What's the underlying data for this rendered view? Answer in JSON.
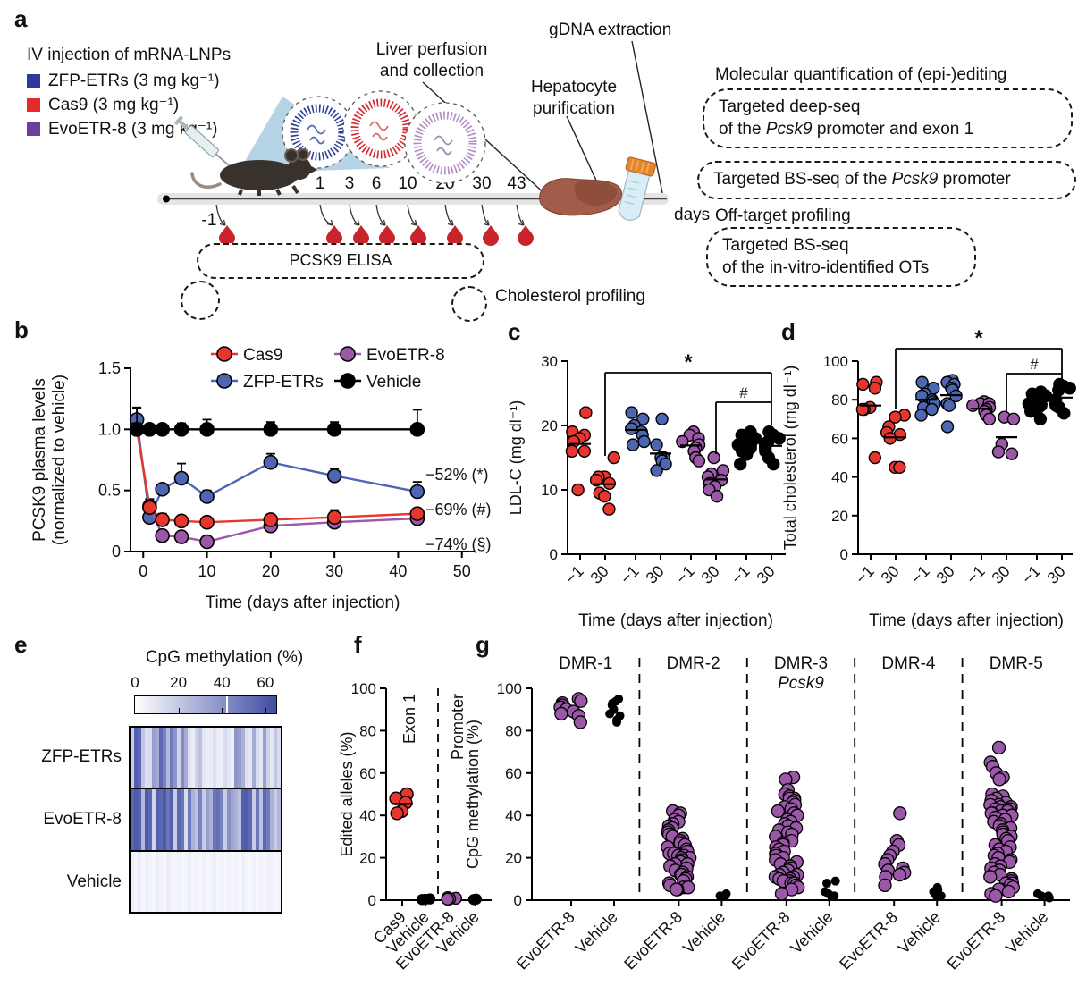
{
  "panels": {
    "a": "a",
    "b": "b",
    "c": "c",
    "d": "d",
    "e": "e",
    "f": "f",
    "g": "g"
  },
  "colors": {
    "cas9": "#e8362f",
    "zfp": "#4c66b2",
    "evo": "#9b57a8",
    "vehicle": "#000000",
    "heat_max": "#3f4da3"
  },
  "panel_a": {
    "legend_title": "IV injection of mRNA-LNPs",
    "legend_items": [
      {
        "label": "ZFP-ETRs (3 mg kg⁻¹)",
        "color": "#30389b"
      },
      {
        "label": "Cas9 (3 mg kg⁻¹)",
        "color": "#e42a2a"
      },
      {
        "label": "EvoETR-8 (3 mg kg⁻¹)",
        "color": "#6b3f9c"
      }
    ],
    "timeline": {
      "start_label": "-1",
      "ticks": [
        "1",
        "3",
        "6",
        "10",
        "20",
        "30",
        "43"
      ],
      "unit_label": "days"
    },
    "callouts": {
      "liver_line1": "Liver perfusion",
      "liver_line2": "and collection",
      "hepatocyte_line1": "Hepatocyte",
      "hepatocyte_line2": "purification",
      "gdna": "gDNA extraction",
      "elisa": "PCSK9 ELISA",
      "cholesterol": "Cholesterol profiling"
    },
    "right_panel": {
      "quant_title": "Molecular quantification of (epi-)editing",
      "box1_line1": "Targeted deep-seq",
      "box1_line2_parts": [
        "of the ",
        "Pcsk9",
        " promoter and exon 1"
      ],
      "box2_parts": [
        "Targeted BS-seq of the ",
        "Pcsk9",
        " promoter"
      ],
      "offtarget_title": "Off-target profiling",
      "box3_line1": "Targeted BS-seq",
      "box3_line2": "of the in-vitro-identified OTs"
    }
  },
  "chart_data": [
    {
      "panel": "b",
      "type": "line",
      "xlabel": "Time (days after injection)",
      "ylabel_line1": "PCSK9 plasma levels",
      "ylabel_line2": "(normalized to vehicle)",
      "x": [
        -1,
        1,
        3,
        6,
        10,
        20,
        30,
        43
      ],
      "xlim": [
        -2,
        52
      ],
      "xticks": [
        0,
        10,
        20,
        30,
        40,
        50
      ],
      "ylim": [
        0,
        1.5
      ],
      "yticks": [
        0,
        0.5,
        1.0,
        1.5
      ],
      "ytick_labels": [
        "0",
        "0.5",
        "1.0",
        "1.5"
      ],
      "series": [
        {
          "name": "ZFP-ETRs",
          "color": "#4c66b2",
          "values": [
            1.08,
            0.28,
            0.51,
            0.6,
            0.45,
            0.73,
            0.62,
            0.49
          ],
          "err": [
            0.1,
            0.04,
            0.04,
            0.12,
            0.05,
            0.07,
            0.06,
            0.08
          ]
        },
        {
          "name": "EvoETR-8",
          "color": "#9b57a8",
          "values": [
            1.0,
            0.37,
            0.13,
            0.12,
            0.08,
            0.21,
            0.24,
            0.27
          ],
          "err": [
            0.05,
            0.06,
            0.03,
            0.03,
            0.02,
            0.04,
            0.04,
            0.04
          ]
        },
        {
          "name": "Cas9",
          "color": "#e8362f",
          "values": [
            1.0,
            0.36,
            0.26,
            0.25,
            0.24,
            0.26,
            0.28,
            0.31
          ],
          "err": [
            0.05,
            0.06,
            0.05,
            0.04,
            0.04,
            0.04,
            0.06,
            0.04
          ]
        },
        {
          "name": "Vehicle",
          "color": "#000000",
          "values": [
            1.0,
            1.0,
            1.0,
            1.0,
            1.0,
            1.0,
            1.0,
            1.0
          ],
          "err": [
            0.17,
            0.04,
            0.04,
            0.05,
            0.08,
            0.06,
            0.06,
            0.16
          ]
        }
      ],
      "legend_order": [
        "Cas9",
        "ZFP-ETRs",
        "EvoETR-8",
        "Vehicle"
      ],
      "annotations": [
        {
          "text": "−52% (*)",
          "color": "#4c66b2",
          "v": 0.63
        },
        {
          "text": "−69% (#)",
          "color": "#e8362f",
          "v": 0.345
        },
        {
          "text": "−74% (§)",
          "color": "#9b57a8",
          "v": 0.06
        }
      ]
    },
    {
      "panel": "c",
      "type": "scatter",
      "ylabel": "LDL-C (mg dl⁻¹)",
      "xlabel": "Time (days after injection)",
      "ylim": [
        0,
        30
      ],
      "yticks": [
        0,
        10,
        20,
        30
      ],
      "groups": [
        {
          "label": "−1",
          "color": "#e8362f",
          "values": [
            22,
            19,
            18.5,
            18,
            17.5,
            16,
            16,
            10
          ]
        },
        {
          "label": "30",
          "color": "#e8362f",
          "values": [
            15,
            12,
            12,
            11.5,
            11,
            9.5,
            9,
            7
          ]
        },
        {
          "label": "−1",
          "color": "#4c66b2",
          "values": [
            22,
            21,
            20,
            19.5,
            19,
            18.5,
            17.5,
            17
          ]
        },
        {
          "label": "30",
          "color": "#4c66b2",
          "values": [
            21,
            17,
            15,
            15,
            14.5,
            14,
            13
          ]
        },
        {
          "label": "−1",
          "color": "#9b57a8",
          "values": [
            19,
            18.5,
            18,
            17.5,
            17,
            16.5,
            16,
            15,
            14.5
          ]
        },
        {
          "label": "30",
          "color": "#9b57a8",
          "values": [
            15,
            13,
            12.5,
            12,
            11.5,
            11,
            10.5,
            10,
            9
          ]
        },
        {
          "label": "−1",
          "color": "#000000",
          "values": [
            19,
            18.5,
            18,
            17.5,
            17,
            16.5,
            16,
            15.5,
            14
          ]
        },
        {
          "label": "30",
          "color": "#000000",
          "values": [
            19,
            18.5,
            18,
            17.5,
            17,
            16.5,
            16,
            15,
            14
          ]
        }
      ],
      "sig": [
        {
          "symbol": "*",
          "from": 1,
          "to": 7
        },
        {
          "symbol": "#",
          "from": 5,
          "to": 7
        }
      ]
    },
    {
      "panel": "d",
      "type": "scatter",
      "ylabel": "Total cholesterol (mg dl⁻¹)",
      "xlabel": "Time (days after injection)",
      "ylim": [
        0,
        100
      ],
      "yticks": [
        0,
        20,
        40,
        60,
        80,
        100
      ],
      "groups": [
        {
          "label": "−1",
          "color": "#e8362f",
          "values": [
            89,
            88,
            86,
            76,
            75,
            75,
            50
          ]
        },
        {
          "label": "30",
          "color": "#e8362f",
          "values": [
            72,
            71,
            66,
            63,
            62,
            60,
            45,
            45
          ]
        },
        {
          "label": "−1",
          "color": "#4c66b2",
          "values": [
            89,
            86,
            83,
            82,
            80,
            79,
            78,
            76,
            75,
            72
          ]
        },
        {
          "label": "30",
          "color": "#4c66b2",
          "values": [
            90,
            89,
            88,
            86,
            85,
            82,
            78,
            77,
            66
          ]
        },
        {
          "label": "−1",
          "color": "#9b57a8",
          "values": [
            79,
            78,
            78,
            77,
            76,
            75,
            74,
            72,
            70
          ]
        },
        {
          "label": "30",
          "color": "#9b57a8",
          "values": [
            71,
            70,
            57,
            53,
            52
          ]
        },
        {
          "label": "−1",
          "color": "#000000",
          "values": [
            84,
            83,
            82,
            80,
            78,
            77,
            76,
            75,
            74,
            70
          ]
        },
        {
          "label": "30",
          "color": "#000000",
          "values": [
            88,
            87,
            86,
            85,
            80,
            78,
            77,
            76,
            73
          ]
        }
      ],
      "sig": [
        {
          "symbol": "*",
          "from": 1,
          "to": 7
        },
        {
          "symbol": "#",
          "from": 5,
          "to": 7
        }
      ]
    },
    {
      "panel": "e",
      "type": "heatmap",
      "title": "CpG methylation (%)",
      "scale_ticks": [
        0,
        20,
        40,
        60
      ],
      "scale_max": 65,
      "scale_marker": 42,
      "rows": [
        {
          "label": "ZFP-ETRs",
          "values": [
            18,
            58,
            55,
            20,
            10,
            12,
            35,
            30,
            55,
            45,
            25,
            48,
            38,
            15,
            42,
            30,
            10,
            6,
            15,
            22,
            8,
            5,
            6,
            10,
            6,
            5,
            12,
            8,
            5,
            38,
            35,
            28,
            10,
            8,
            30,
            12,
            8,
            34,
            15,
            8,
            20,
            12
          ]
        },
        {
          "label": "EvoETR-8",
          "values": [
            55,
            60,
            58,
            25,
            60,
            55,
            15,
            58,
            55,
            60,
            50,
            58,
            18,
            55,
            50,
            12,
            48,
            28,
            22,
            45,
            18,
            35,
            28,
            50,
            52,
            45,
            18,
            40,
            32,
            28,
            22,
            58,
            60,
            55,
            18,
            50,
            22,
            55,
            48,
            28,
            18,
            25
          ]
        },
        {
          "label": "Vehicle",
          "values": [
            5,
            3,
            6,
            2,
            4,
            3,
            2,
            5,
            3,
            2,
            6,
            3,
            2,
            4,
            2,
            3,
            5,
            2,
            3,
            2,
            4,
            2,
            3,
            5,
            2,
            3,
            2,
            4,
            2,
            3,
            2,
            5,
            3,
            2,
            4,
            2,
            3,
            2,
            4,
            3,
            2,
            3
          ]
        }
      ]
    },
    {
      "panel": "f",
      "type": "scatter",
      "ylabel": "Edited alleles (%)",
      "ylim": [
        0,
        100
      ],
      "yticks": [
        0,
        20,
        40,
        60,
        80,
        100
      ],
      "sections": [
        {
          "label": "Exon 1"
        },
        {
          "label": "Promoter"
        }
      ],
      "groups": [
        {
          "label": "Cas9",
          "color": "#e8362f",
          "values": [
            50,
            48,
            46,
            42,
            41
          ]
        },
        {
          "label": "Vehicle",
          "color": "#000000",
          "values": [
            0.6,
            0.4,
            0.3
          ]
        },
        {
          "label": "EvoETR-8",
          "color": "#9b57a8",
          "values": [
            1.2,
            0.9,
            0.7,
            0.5
          ]
        },
        {
          "label": "Vehicle",
          "color": "#000000",
          "values": [
            0.5,
            0.3
          ]
        }
      ]
    },
    {
      "panel": "g",
      "type": "facet-scatter",
      "ylabel": "CpG methylation (%)",
      "ylim": [
        0,
        100
      ],
      "yticks": [
        0,
        20,
        40,
        60,
        80,
        100
      ],
      "x_labels": [
        "EvoETR-8",
        "Vehicle"
      ],
      "facets": [
        {
          "label": "DMR-1",
          "sublabel": "",
          "evo": [
            95,
            94,
            93,
            92,
            91,
            91,
            90,
            89,
            88,
            87,
            84
          ],
          "vehicle": [
            95,
            94,
            93,
            92,
            90,
            88,
            87,
            85,
            84
          ]
        },
        {
          "label": "DMR-2",
          "sublabel": "",
          "evo": [
            42,
            41,
            40,
            38,
            37,
            36,
            35,
            34,
            33,
            32,
            31,
            30,
            29,
            28,
            27,
            26,
            25,
            24,
            23,
            22,
            22,
            21,
            21,
            20,
            20,
            19,
            18,
            17,
            17,
            16,
            15,
            14,
            13,
            12,
            12,
            11,
            10,
            9,
            8,
            7,
            6,
            6,
            5,
            5
          ],
          "vehicle": [
            3,
            2,
            2
          ]
        },
        {
          "label": "DMR-3",
          "sublabel": "Pcsk9",
          "evo": [
            58,
            57,
            52,
            50,
            49,
            48,
            48,
            47,
            46,
            45,
            44,
            43,
            42,
            41,
            40,
            38,
            37,
            36,
            35,
            34,
            33,
            32,
            31,
            30,
            28,
            27,
            26,
            25,
            24,
            23,
            22,
            21,
            20,
            19,
            18,
            17,
            16,
            15,
            14,
            13,
            12,
            12,
            11,
            11,
            10,
            10,
            9,
            9,
            8,
            8,
            7,
            6,
            5,
            3
          ],
          "vehicle": [
            9,
            8,
            4,
            3,
            2,
            2
          ]
        },
        {
          "label": "DMR-4",
          "sublabel": "",
          "evo": [
            41,
            28,
            26,
            23,
            21,
            19,
            17,
            15,
            14,
            13,
            12,
            11,
            7
          ],
          "vehicle": [
            6,
            5,
            4,
            3,
            2,
            2
          ]
        },
        {
          "label": "DMR-5",
          "sublabel": "",
          "evo": [
            72,
            65,
            63,
            60,
            58,
            57,
            50,
            49,
            48,
            47,
            46,
            45,
            45,
            44,
            44,
            43,
            43,
            42,
            42,
            41,
            41,
            40,
            40,
            39,
            38,
            37,
            36,
            35,
            34,
            33,
            32,
            31,
            30,
            29,
            28,
            26,
            25,
            24,
            23,
            22,
            21,
            20,
            19,
            18,
            17,
            16,
            15,
            14,
            13,
            12,
            11,
            10,
            9,
            8,
            8,
            7,
            6,
            5,
            5,
            4,
            3,
            2
          ],
          "vehicle": [
            3,
            2,
            2,
            1
          ]
        }
      ]
    }
  ]
}
